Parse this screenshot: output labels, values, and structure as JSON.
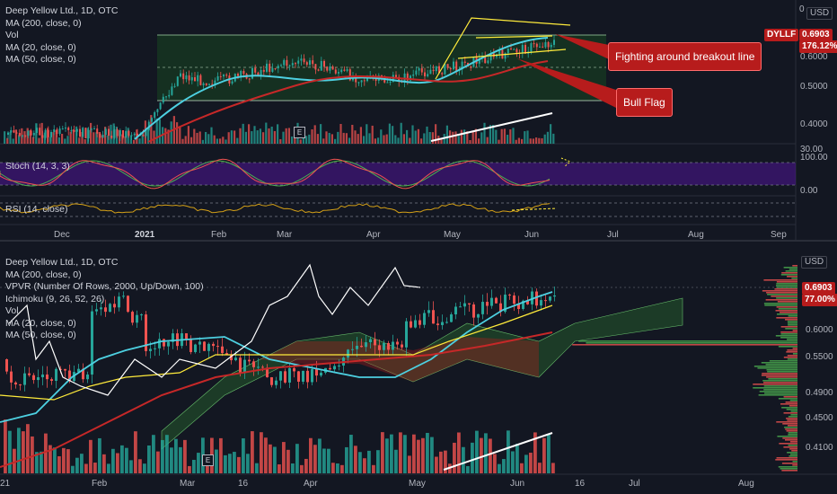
{
  "top_pane": {
    "legend": [
      "Deep Yellow Ltd., 1D, OTC",
      "MA (200, close, 0)",
      "Vol",
      "MA (20, close, 0)",
      "MA (50, close, 0)"
    ],
    "stoch_label": "Stoch (14, 3, 3)",
    "rsi_label": "RSI (14, close)",
    "price_axis": [
      "0.6000",
      "0.5000",
      "0.4000"
    ],
    "top_tick": "0",
    "stoch_axis": [
      "30.00",
      "100.00",
      "0.00"
    ],
    "currency": "USD",
    "symbol_tag": "DYLLF",
    "price_tag": "0.6903",
    "pct_tag": "176.12%",
    "earnings_badge": "E",
    "time_axis": [
      "Dec",
      "2021",
      "Feb",
      "Mar",
      "Apr",
      "May",
      "Jun",
      "Jul",
      "Aug",
      "Sep"
    ]
  },
  "callouts": {
    "breakout": "Fighting around breakout line",
    "bull_flag": "Bull Flag"
  },
  "bottom_pane": {
    "legend": [
      "Deep Yellow Ltd., 1D, OTC",
      "MA (200, close, 0)",
      "VPVR (Number Of Rows, 2000, Up/Down, 100)",
      "Ichimoku (9, 26, 52, 26)",
      "Vol",
      "MA (20, close, 0)",
      "MA (50, close, 0)"
    ],
    "price_axis": [
      "0.6000",
      "0.5500",
      "0.4900",
      "0.4500",
      "0.4100"
    ],
    "currency": "USD",
    "price_tag": "0.6903",
    "pct_tag": "77.00%",
    "earnings_badge": "E",
    "time_axis": [
      "21",
      "Feb",
      "Mar",
      "16",
      "Apr",
      "May",
      "Jun",
      "16",
      "Jul",
      "Aug"
    ]
  },
  "colors": {
    "bg": "#131722",
    "up": "#26a69a",
    "down": "#ef5350",
    "ma20": "#4dd0e1",
    "ma50": "#c62828",
    "flag": "#ffeb3b",
    "callout": "#b71c1c",
    "stoch_band": "#4a148c"
  }
}
